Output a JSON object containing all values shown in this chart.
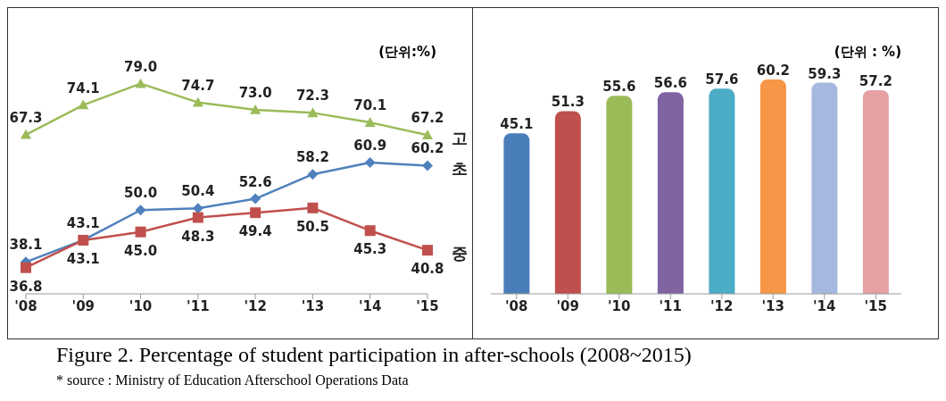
{
  "chart_data": [
    {
      "type": "line",
      "title": "Figure 2. Percentage of student participation in after-schools (2008~2015)",
      "categories": [
        "'08",
        "'09",
        "'10",
        "'11",
        "'12",
        "'13",
        "'14",
        "'15"
      ],
      "series": [
        {
          "name": "고",
          "color": "#9bbb59",
          "marker": "triangle",
          "values": [
            67.3,
            74.1,
            79.0,
            74.7,
            73.0,
            72.3,
            70.1,
            67.2
          ],
          "value_labels": [
            "67.3",
            "74.1",
            "79.0",
            "74.7",
            "73.0",
            "72.3",
            "70.1",
            "67.2"
          ]
        },
        {
          "name": "초",
          "color": "#4f81bd",
          "marker": "diamond",
          "values": [
            38.1,
            43.1,
            50.0,
            50.4,
            52.6,
            58.2,
            60.9,
            60.2
          ],
          "value_labels": [
            "38.1",
            "43.1",
            "50.0",
            "50.4",
            "52.6",
            "58.2",
            "60.9",
            "60.2"
          ]
        },
        {
          "name": "중",
          "color": "#c0504d",
          "marker": "square",
          "values": [
            36.8,
            43.1,
            45.0,
            48.3,
            49.4,
            50.5,
            45.3,
            40.8
          ],
          "value_labels": [
            "36.8",
            "43.1",
            "45.0",
            "48.3",
            "49.4",
            "50.5",
            "45.3",
            "40.8"
          ]
        }
      ],
      "legend": false,
      "grid": false,
      "annotations": [
        "(단위:%)",
        "* source : Ministry of Education Afterschool Operations Data"
      ]
    },
    {
      "type": "bar",
      "categories": [
        "'08",
        "'09",
        "'10",
        "'11",
        "'12",
        "'13",
        "'14",
        "'15"
      ],
      "values": [
        45.1,
        51.3,
        55.6,
        56.6,
        57.6,
        60.2,
        59.3,
        57.2
      ],
      "colors": [
        "#4a7ebb",
        "#c0504d",
        "#9bbb59",
        "#8064a2",
        "#4bacc6",
        "#f79646",
        "#a5b9e0",
        "#e6a0a4"
      ],
      "data_labels": true,
      "legend": false,
      "grid": false,
      "annotations": [
        "(단위 : %)"
      ]
    }
  ]
}
